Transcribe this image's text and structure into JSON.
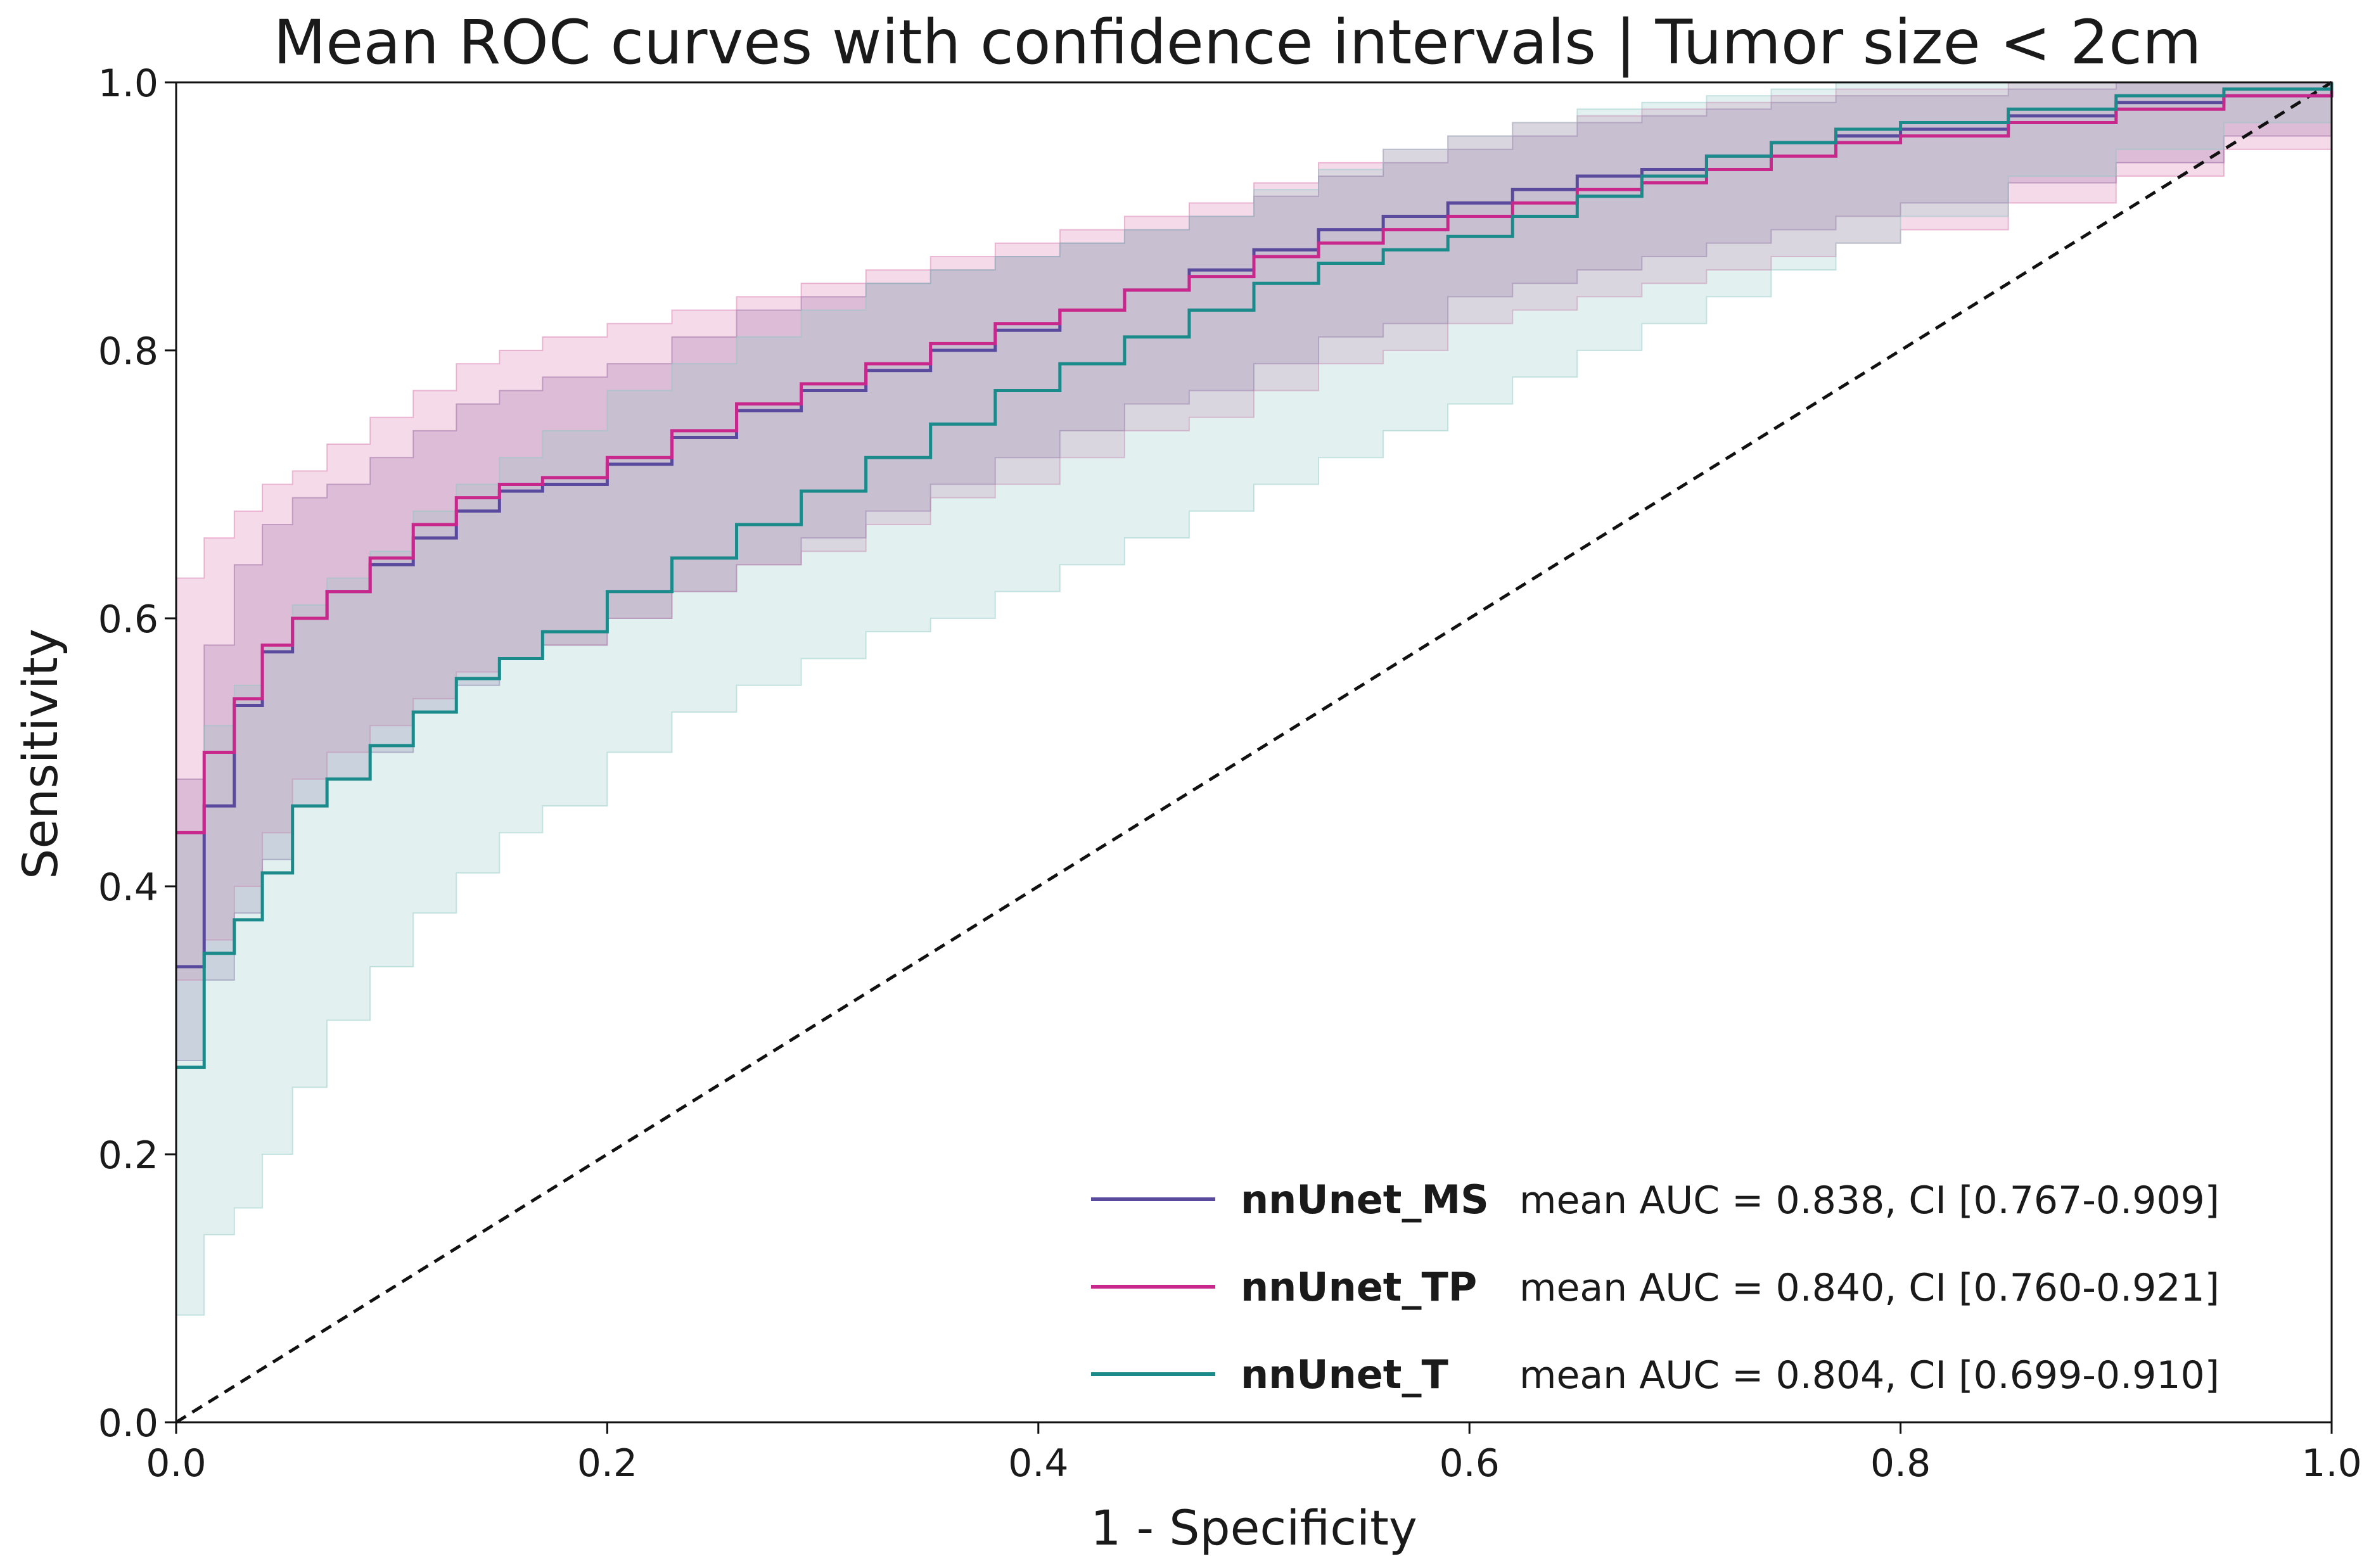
{
  "chart_data": {
    "type": "line",
    "title": "Mean ROC curves with confidence intervals | Tumor size < 2cm",
    "xlabel": "1 - Specificity",
    "ylabel": "Sensitivity",
    "xlim": [
      0.0,
      1.0
    ],
    "ylim": [
      0.0,
      1.0
    ],
    "xticks": [
      "0.0",
      "0.2",
      "0.4",
      "0.6",
      "0.8",
      "1.0"
    ],
    "yticks": [
      "0.0",
      "0.2",
      "0.4",
      "0.6",
      "0.8",
      "1.0"
    ],
    "grid": false,
    "legend_position": "bottom-right",
    "diagonal": {
      "style": "dashed",
      "color": "#111111",
      "points": [
        [
          0,
          0
        ],
        [
          1,
          1
        ]
      ]
    },
    "series": [
      {
        "name": "nnUnet_MS",
        "legend_text": "mean AUC = 0.838, CI [0.767-0.909]",
        "auc": 0.838,
        "ci": [
          0.767,
          0.909
        ],
        "color": "#5a4a9e",
        "fill": "#7a5a9a",
        "x": [
          0.0,
          0.013,
          0.027,
          0.04,
          0.054,
          0.07,
          0.09,
          0.11,
          0.13,
          0.15,
          0.17,
          0.2,
          0.23,
          0.26,
          0.29,
          0.32,
          0.35,
          0.38,
          0.41,
          0.44,
          0.47,
          0.5,
          0.53,
          0.56,
          0.59,
          0.62,
          0.65,
          0.68,
          0.71,
          0.74,
          0.77,
          0.8,
          0.85,
          0.9,
          0.95,
          1.0
        ],
        "y": [
          0.34,
          0.46,
          0.535,
          0.575,
          0.6,
          0.62,
          0.64,
          0.66,
          0.68,
          0.695,
          0.7,
          0.715,
          0.735,
          0.755,
          0.77,
          0.785,
          0.8,
          0.815,
          0.83,
          0.845,
          0.86,
          0.875,
          0.89,
          0.9,
          0.91,
          0.92,
          0.93,
          0.935,
          0.945,
          0.955,
          0.96,
          0.965,
          0.975,
          0.985,
          0.99,
          1.0
        ],
        "lower": [
          0.27,
          0.33,
          0.38,
          0.42,
          0.46,
          0.48,
          0.5,
          0.53,
          0.55,
          0.57,
          0.58,
          0.6,
          0.62,
          0.64,
          0.66,
          0.68,
          0.7,
          0.72,
          0.74,
          0.76,
          0.77,
          0.79,
          0.81,
          0.82,
          0.84,
          0.85,
          0.86,
          0.87,
          0.88,
          0.89,
          0.9,
          0.91,
          0.925,
          0.94,
          0.96,
          1.0
        ],
        "upper": [
          0.48,
          0.58,
          0.64,
          0.67,
          0.69,
          0.7,
          0.72,
          0.74,
          0.76,
          0.77,
          0.78,
          0.79,
          0.81,
          0.83,
          0.84,
          0.85,
          0.86,
          0.87,
          0.88,
          0.89,
          0.9,
          0.915,
          0.93,
          0.94,
          0.95,
          0.96,
          0.97,
          0.975,
          0.98,
          0.985,
          0.99,
          0.99,
          0.995,
          1.0,
          1.0,
          1.0
        ]
      },
      {
        "name": "nnUnet_TP",
        "legend_text": "mean AUC = 0.840, CI [0.760-0.921]",
        "auc": 0.84,
        "ci": [
          0.76,
          0.921
        ],
        "color": "#c8288c",
        "fill": "#d870a8",
        "x": [
          0.0,
          0.013,
          0.027,
          0.04,
          0.054,
          0.07,
          0.09,
          0.11,
          0.13,
          0.15,
          0.17,
          0.2,
          0.23,
          0.26,
          0.29,
          0.32,
          0.35,
          0.38,
          0.41,
          0.44,
          0.47,
          0.5,
          0.53,
          0.56,
          0.59,
          0.62,
          0.65,
          0.68,
          0.71,
          0.74,
          0.77,
          0.8,
          0.85,
          0.9,
          0.95,
          1.0
        ],
        "y": [
          0.44,
          0.5,
          0.54,
          0.58,
          0.6,
          0.62,
          0.645,
          0.67,
          0.69,
          0.7,
          0.705,
          0.72,
          0.74,
          0.76,
          0.775,
          0.79,
          0.805,
          0.82,
          0.83,
          0.845,
          0.855,
          0.87,
          0.88,
          0.89,
          0.9,
          0.91,
          0.92,
          0.925,
          0.935,
          0.945,
          0.955,
          0.96,
          0.97,
          0.98,
          0.99,
          1.0
        ],
        "lower": [
          0.33,
          0.36,
          0.4,
          0.44,
          0.48,
          0.5,
          0.52,
          0.54,
          0.56,
          0.57,
          0.58,
          0.6,
          0.62,
          0.64,
          0.65,
          0.67,
          0.69,
          0.7,
          0.72,
          0.74,
          0.75,
          0.77,
          0.79,
          0.8,
          0.82,
          0.83,
          0.84,
          0.85,
          0.86,
          0.87,
          0.88,
          0.89,
          0.91,
          0.93,
          0.95,
          1.0
        ],
        "upper": [
          0.63,
          0.66,
          0.68,
          0.7,
          0.71,
          0.73,
          0.75,
          0.77,
          0.79,
          0.8,
          0.81,
          0.82,
          0.83,
          0.84,
          0.85,
          0.86,
          0.87,
          0.88,
          0.89,
          0.9,
          0.91,
          0.925,
          0.94,
          0.95,
          0.96,
          0.97,
          0.975,
          0.98,
          0.985,
          0.99,
          0.995,
          0.995,
          1.0,
          1.0,
          1.0,
          1.0
        ]
      },
      {
        "name": "nnUnet_T",
        "legend_text": "mean AUC = 0.804, CI [0.699-0.910]",
        "auc": 0.804,
        "ci": [
          0.699,
          0.91
        ],
        "color": "#1b8a8a",
        "fill": "#8cc8c4",
        "x": [
          0.0,
          0.013,
          0.027,
          0.04,
          0.054,
          0.07,
          0.09,
          0.11,
          0.13,
          0.15,
          0.17,
          0.2,
          0.23,
          0.26,
          0.29,
          0.32,
          0.35,
          0.38,
          0.41,
          0.44,
          0.47,
          0.5,
          0.53,
          0.56,
          0.59,
          0.62,
          0.65,
          0.68,
          0.71,
          0.74,
          0.77,
          0.8,
          0.85,
          0.9,
          0.95,
          1.0
        ],
        "y": [
          0.265,
          0.35,
          0.375,
          0.41,
          0.46,
          0.48,
          0.505,
          0.53,
          0.555,
          0.57,
          0.59,
          0.62,
          0.645,
          0.67,
          0.695,
          0.72,
          0.745,
          0.77,
          0.79,
          0.81,
          0.83,
          0.85,
          0.865,
          0.875,
          0.885,
          0.9,
          0.915,
          0.93,
          0.945,
          0.955,
          0.965,
          0.97,
          0.98,
          0.99,
          0.995,
          1.0
        ],
        "lower": [
          0.08,
          0.14,
          0.16,
          0.2,
          0.25,
          0.3,
          0.34,
          0.38,
          0.41,
          0.44,
          0.46,
          0.5,
          0.53,
          0.55,
          0.57,
          0.59,
          0.6,
          0.62,
          0.64,
          0.66,
          0.68,
          0.7,
          0.72,
          0.74,
          0.76,
          0.78,
          0.8,
          0.82,
          0.84,
          0.86,
          0.88,
          0.9,
          0.93,
          0.95,
          0.97,
          1.0
        ],
        "upper": [
          0.44,
          0.52,
          0.55,
          0.58,
          0.61,
          0.63,
          0.65,
          0.68,
          0.7,
          0.72,
          0.74,
          0.77,
          0.79,
          0.81,
          0.83,
          0.85,
          0.86,
          0.87,
          0.88,
          0.89,
          0.9,
          0.92,
          0.935,
          0.95,
          0.96,
          0.97,
          0.98,
          0.985,
          0.99,
          0.995,
          1.0,
          1.0,
          1.0,
          1.0,
          1.0,
          1.0
        ]
      }
    ]
  }
}
